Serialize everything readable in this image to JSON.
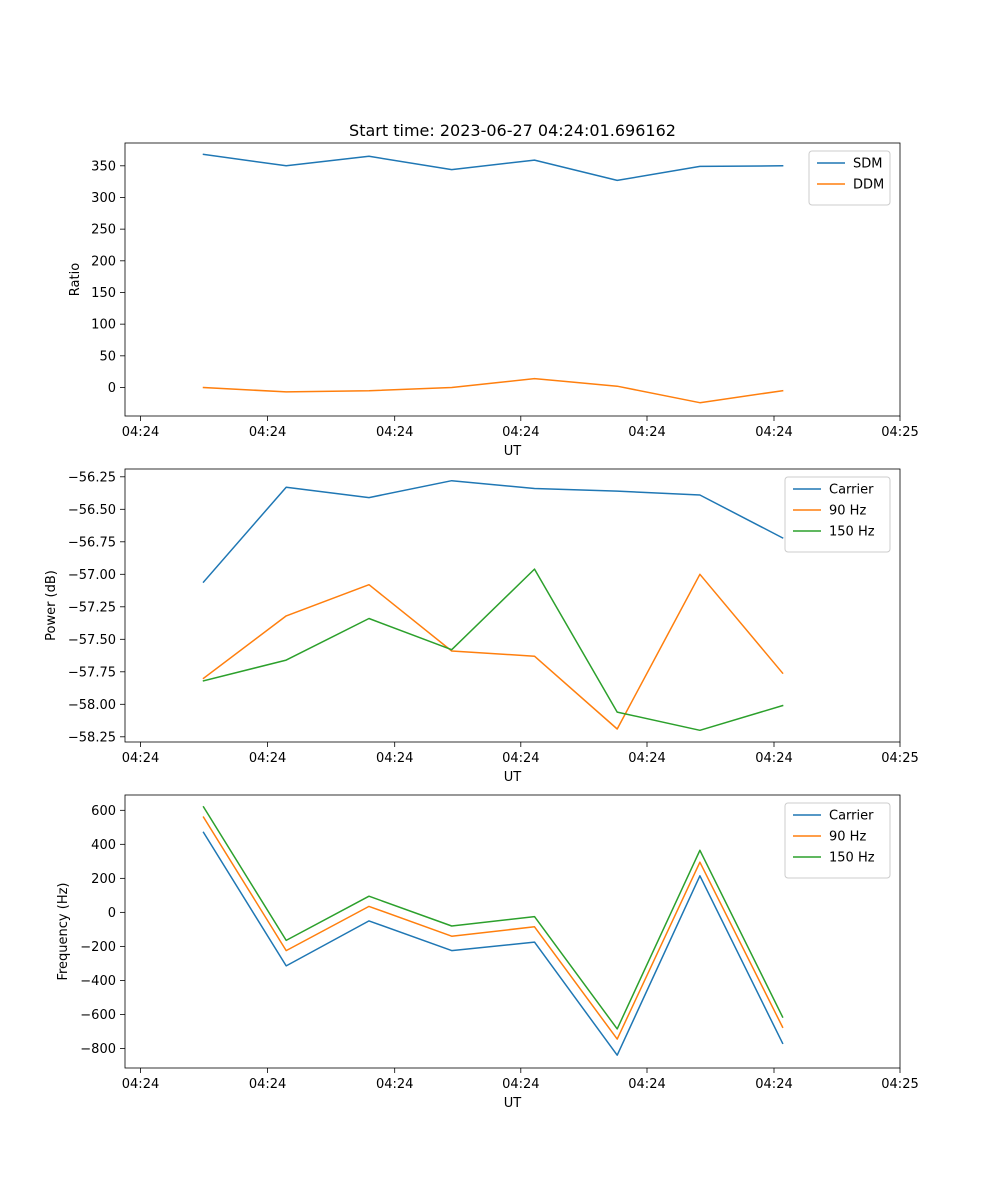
{
  "figure": {
    "title": "Start time: 2023-06-27 04:24:01.696162"
  },
  "chart_data": [
    {
      "type": "line",
      "title": "Start time: 2023-06-27 04:24:01.696162",
      "xlabel": "UT",
      "ylabel": "Ratio",
      "x_tick_labels": [
        "04:24",
        "04:24",
        "04:24",
        "04:24",
        "04:24",
        "04:24",
        "04:25"
      ],
      "y_ticks": [
        0,
        50,
        100,
        150,
        200,
        250,
        300,
        350
      ],
      "y_tick_labels": [
        "0",
        "50",
        "100",
        "150",
        "200",
        "250",
        "300",
        "350"
      ],
      "ylim": [
        -45,
        386
      ],
      "grid": false,
      "legend": "top-right",
      "series": [
        {
          "name": "SDM",
          "color": "#1f77b4",
          "values": [
            368,
            350,
            365,
            344,
            359,
            327,
            349,
            350
          ]
        },
        {
          "name": "DDM",
          "color": "#ff7f0e",
          "values": [
            0,
            -7,
            -5,
            0,
            14,
            2,
            -24,
            -5
          ]
        }
      ]
    },
    {
      "type": "line",
      "xlabel": "UT",
      "ylabel": "Power (dB)",
      "x_tick_labels": [
        "04:24",
        "04:24",
        "04:24",
        "04:24",
        "04:24",
        "04:24",
        "04:25"
      ],
      "y_ticks": [
        -58.25,
        -58.0,
        -57.75,
        -57.5,
        -57.25,
        -57.0,
        -56.75,
        -56.5,
        -56.25
      ],
      "y_tick_labels": [
        "−58.25",
        "−58.00",
        "−57.75",
        "−57.50",
        "−57.25",
        "−57.00",
        "−56.75",
        "−56.50",
        "−56.25"
      ],
      "ylim": [
        -58.29,
        -56.19
      ],
      "grid": false,
      "legend": "top-right",
      "series": [
        {
          "name": "Carrier",
          "color": "#1f77b4",
          "values": [
            -57.06,
            -56.33,
            -56.41,
            -56.28,
            -56.34,
            -56.36,
            -56.39,
            -56.72
          ]
        },
        {
          "name": "90 Hz",
          "color": "#ff7f0e",
          "values": [
            -57.8,
            -57.32,
            -57.08,
            -57.59,
            -57.63,
            -58.19,
            -57.0,
            -57.76
          ]
        },
        {
          "name": "150 Hz",
          "color": "#2ca02c",
          "values": [
            -57.82,
            -57.66,
            -57.34,
            -57.58,
            -56.96,
            -58.06,
            -58.2,
            -58.01
          ]
        }
      ]
    },
    {
      "type": "line",
      "xlabel": "UT",
      "ylabel": "Frequency (Hz)",
      "x_tick_labels": [
        "04:24",
        "04:24",
        "04:24",
        "04:24",
        "04:24",
        "04:24",
        "04:25"
      ],
      "y_ticks": [
        -800,
        -600,
        -400,
        -200,
        0,
        200,
        400,
        600
      ],
      "y_tick_labels": [
        "−800",
        "−600",
        "−400",
        "−200",
        "0",
        "200",
        "400",
        "600"
      ],
      "ylim": [
        -915,
        690
      ],
      "grid": false,
      "legend": "top-right",
      "series": [
        {
          "name": "Carrier",
          "color": "#1f77b4",
          "values": [
            470,
            -315,
            -50,
            -225,
            -175,
            -840,
            215,
            -770
          ]
        },
        {
          "name": "90 Hz",
          "color": "#ff7f0e",
          "values": [
            560,
            -225,
            35,
            -140,
            -85,
            -745,
            295,
            -675
          ]
        },
        {
          "name": "150 Hz",
          "color": "#2ca02c",
          "values": [
            620,
            -165,
            95,
            -80,
            -25,
            -685,
            365,
            -615
          ]
        }
      ]
    }
  ]
}
